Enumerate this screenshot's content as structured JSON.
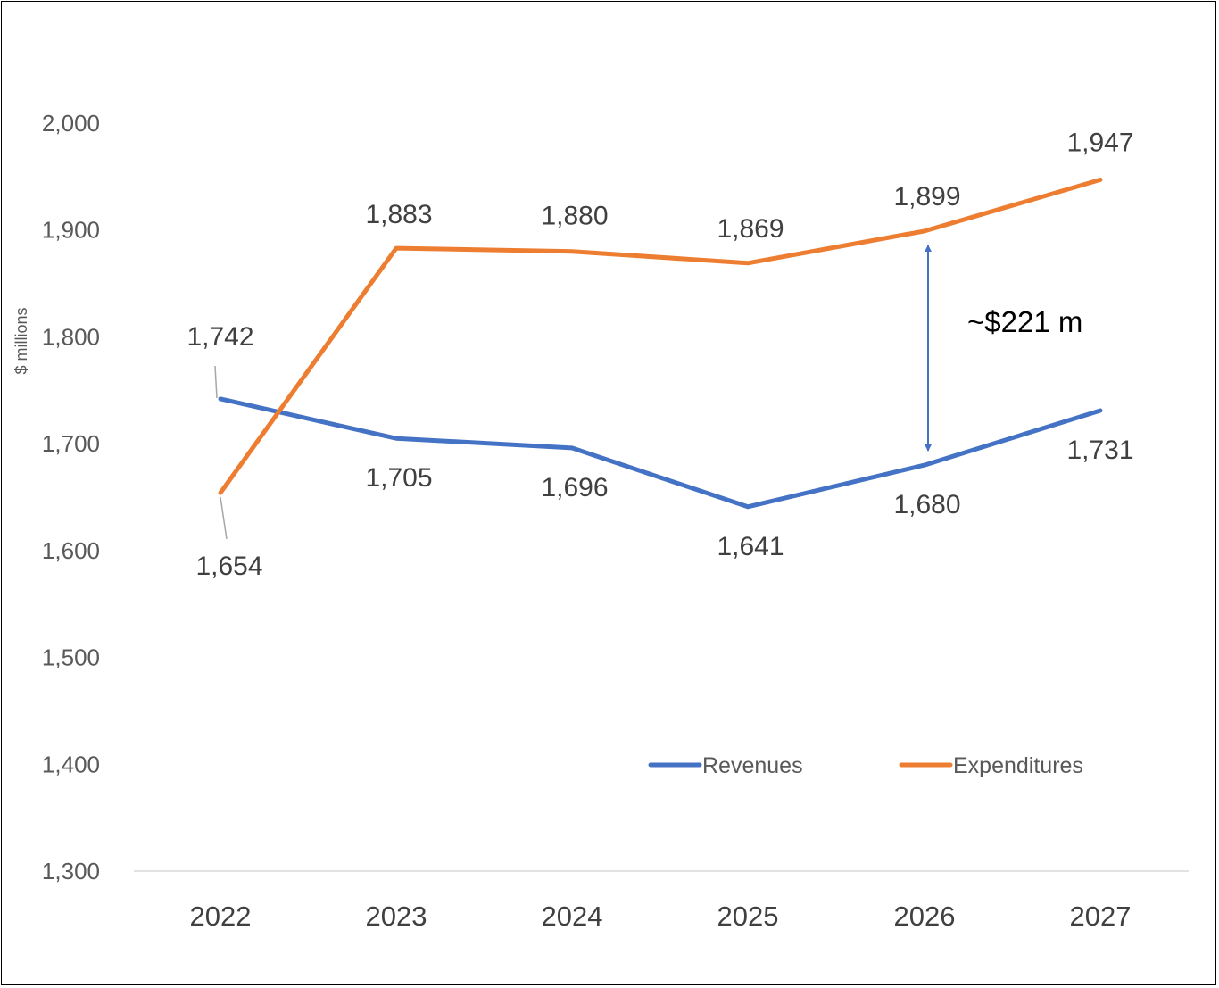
{
  "chart_data": {
    "type": "line",
    "categories": [
      "2022",
      "2023",
      "2024",
      "2025",
      "2026",
      "2027"
    ],
    "series": [
      {
        "name": "Revenues",
        "color": "#4472C4",
        "values": [
          1742,
          1705,
          1696,
          1641,
          1680,
          1731
        ],
        "labels": [
          "1,742",
          "1,705",
          "1,696",
          "1,641",
          "1,680",
          "1,731"
        ]
      },
      {
        "name": "Expenditures",
        "color": "#ED7D31",
        "values": [
          1654,
          1883,
          1880,
          1869,
          1899,
          1947
        ],
        "labels": [
          "1,654",
          "1,883",
          "1,880",
          "1,869",
          "1,899",
          "1,947"
        ]
      }
    ],
    "ylabel": "$ millions",
    "ylim": [
      1300,
      2000
    ],
    "yticks": [
      "1,300",
      "1,400",
      "1,500",
      "1,600",
      "1,700",
      "1,800",
      "1,900",
      "2,000"
    ],
    "grid": false,
    "legend_position": "bottom-right",
    "annotation": {
      "text": "~$221 m",
      "category": "2026",
      "from": 1680,
      "to": 1899
    }
  }
}
